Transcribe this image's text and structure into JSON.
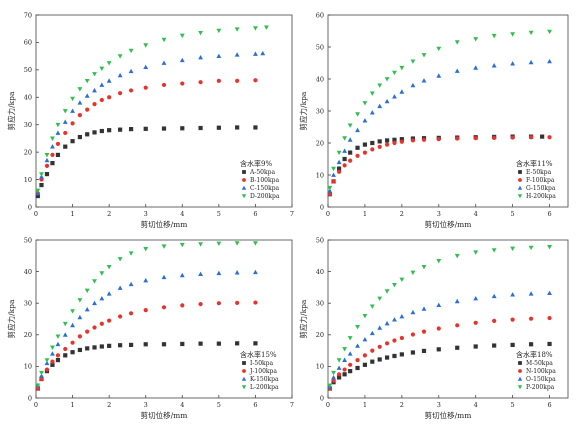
{
  "chart_data": [
    {
      "type": "scatter",
      "xlabel": "剪切位移/mm",
      "ylabel": "剪应力/kpa",
      "xlim": [
        0,
        7
      ],
      "ylim": [
        0,
        70
      ],
      "xticks": [
        0,
        1,
        2,
        3,
        4,
        5,
        6,
        7
      ],
      "yticks": [
        0,
        10,
        20,
        30,
        40,
        50,
        60,
        70
      ],
      "legend_title": "含水率9%",
      "legend_position": "bottom-right",
      "series": [
        {
          "name": "A-50kpa",
          "marker": "square",
          "color": "#333333",
          "x": [
            0.05,
            0.15,
            0.3,
            0.45,
            0.6,
            0.8,
            1.0,
            1.2,
            1.4,
            1.6,
            1.8,
            2.0,
            2.3,
            2.6,
            3.0,
            3.5,
            4.0,
            4.5,
            5.0,
            5.5,
            6.0
          ],
          "y": [
            4,
            8,
            12,
            16,
            19,
            22,
            24,
            25.5,
            26.5,
            27.2,
            27.7,
            28,
            28.2,
            28.4,
            28.5,
            28.6,
            28.7,
            28.8,
            28.9,
            29,
            29
          ]
        },
        {
          "name": "B-100kpa",
          "marker": "circle",
          "color": "#e8322c",
          "x": [
            0.05,
            0.15,
            0.3,
            0.45,
            0.6,
            0.8,
            1.0,
            1.2,
            1.4,
            1.6,
            1.8,
            2.0,
            2.3,
            2.6,
            3.0,
            3.5,
            4.0,
            4.5,
            5.0,
            5.5,
            6.0
          ],
          "y": [
            5,
            10,
            15,
            19,
            23,
            27,
            30.5,
            33.5,
            35.5,
            37.5,
            39,
            40,
            41.5,
            42.5,
            43.5,
            44.5,
            45,
            45.5,
            46,
            46,
            46.2
          ]
        },
        {
          "name": "C-150kpa",
          "marker": "triangle-up",
          "color": "#2a6fd6",
          "x": [
            0.05,
            0.15,
            0.3,
            0.45,
            0.6,
            0.8,
            1.0,
            1.2,
            1.4,
            1.6,
            1.8,
            2.0,
            2.3,
            2.6,
            3.0,
            3.5,
            4.0,
            4.5,
            5.0,
            5.5,
            6.0,
            6.2
          ],
          "y": [
            5,
            11,
            17,
            22,
            27,
            31,
            35,
            38,
            40.5,
            42.5,
            44.5,
            46,
            48,
            49.5,
            51,
            52.5,
            53.5,
            54.5,
            55,
            55.5,
            55.8,
            56
          ]
        },
        {
          "name": "D-200kpa",
          "marker": "triangle-down",
          "color": "#2fbf4e",
          "x": [
            0.05,
            0.15,
            0.3,
            0.45,
            0.6,
            0.8,
            1.0,
            1.2,
            1.4,
            1.6,
            1.8,
            2.0,
            2.3,
            2.6,
            3.0,
            3.5,
            4.0,
            4.5,
            5.0,
            5.5,
            6.0,
            6.3
          ],
          "y": [
            6,
            12,
            19,
            25,
            30,
            35,
            39.5,
            43,
            46,
            48.5,
            50.5,
            52.5,
            55,
            57,
            59,
            61,
            62.5,
            63.5,
            64.3,
            64.8,
            65.2,
            65.5
          ]
        }
      ]
    },
    {
      "type": "scatter",
      "xlabel": "剪切位移/mm",
      "ylabel": "剪应力/kpa",
      "xlim": [
        0,
        6.5
      ],
      "ylim": [
        0,
        60
      ],
      "xticks": [
        0,
        1,
        2,
        3,
        4,
        5,
        6
      ],
      "yticks": [
        0,
        10,
        20,
        30,
        40,
        50,
        60
      ],
      "legend_title": "含水率11%",
      "legend_position": "bottom-right",
      "series": [
        {
          "name": "E-50kpa",
          "marker": "square",
          "color": "#333333",
          "x": [
            0.05,
            0.15,
            0.3,
            0.45,
            0.6,
            0.8,
            1.0,
            1.2,
            1.4,
            1.6,
            1.8,
            2.0,
            2.3,
            2.6,
            3.0,
            3.5,
            4.0,
            4.5,
            5.0,
            5.5,
            5.8
          ],
          "y": [
            4,
            8,
            12,
            15,
            17,
            18.5,
            19.5,
            20,
            20.5,
            20.8,
            21,
            21.2,
            21.4,
            21.5,
            21.6,
            21.7,
            21.8,
            21.9,
            22,
            22,
            22
          ]
        },
        {
          "name": "F-100kpa",
          "marker": "circle",
          "color": "#e8322c",
          "x": [
            0.05,
            0.15,
            0.3,
            0.45,
            0.6,
            0.8,
            1.0,
            1.2,
            1.4,
            1.6,
            1.8,
            2.0,
            2.3,
            2.6,
            3.0,
            3.5,
            4.0,
            4.5,
            5.0,
            5.5,
            6.0
          ],
          "y": [
            4,
            8,
            11,
            13,
            14.5,
            16,
            17,
            18,
            18.8,
            19.5,
            20,
            20.4,
            20.8,
            21,
            21.2,
            21.4,
            21.5,
            21.6,
            21.7,
            21.8,
            21.8
          ]
        },
        {
          "name": "G-150kpa",
          "marker": "triangle-up",
          "color": "#2a6fd6",
          "x": [
            0.05,
            0.15,
            0.3,
            0.45,
            0.6,
            0.8,
            1.0,
            1.2,
            1.4,
            1.6,
            1.8,
            2.0,
            2.3,
            2.6,
            3.0,
            3.5,
            4.0,
            4.5,
            5.0,
            5.5,
            6.0
          ],
          "y": [
            5,
            10,
            14,
            17.5,
            21,
            24,
            27,
            29.5,
            31.5,
            33,
            34.5,
            36,
            38,
            39.5,
            41,
            42.5,
            43.5,
            44.2,
            44.8,
            45.2,
            45.5
          ]
        },
        {
          "name": "H-200kpa",
          "marker": "triangle-down",
          "color": "#2fbf4e",
          "x": [
            0.05,
            0.15,
            0.3,
            0.45,
            0.6,
            0.8,
            1.0,
            1.2,
            1.4,
            1.6,
            1.8,
            2.0,
            2.3,
            2.6,
            3.0,
            3.5,
            4.0,
            4.5,
            5.0,
            5.5,
            6.0
          ],
          "y": [
            6,
            12,
            17,
            21.5,
            25.5,
            29,
            32.5,
            35.5,
            38,
            40,
            42,
            43.5,
            45.5,
            47.5,
            49.5,
            51.5,
            52.5,
            53.5,
            54,
            54.5,
            54.8
          ]
        }
      ]
    },
    {
      "type": "scatter",
      "xlabel": "剪切位移/mm",
      "ylabel": "剪应力/kpa",
      "xlim": [
        0,
        7
      ],
      "ylim": [
        0,
        50
      ],
      "xticks": [
        0,
        1,
        2,
        3,
        4,
        5,
        6,
        7
      ],
      "yticks": [
        0,
        10,
        20,
        30,
        40,
        50
      ],
      "legend_title": "含水率15%",
      "legend_position": "bottom-right",
      "series": [
        {
          "name": "I-50kpa",
          "marker": "square",
          "color": "#333333",
          "x": [
            0.05,
            0.15,
            0.3,
            0.45,
            0.6,
            0.8,
            1.0,
            1.2,
            1.4,
            1.6,
            1.8,
            2.0,
            2.3,
            2.6,
            3.0,
            3.5,
            4.0,
            4.5,
            5.0,
            5.5,
            6.0
          ],
          "y": [
            3,
            6,
            8.5,
            10.5,
            12,
            13.5,
            14.5,
            15.2,
            15.7,
            16,
            16.3,
            16.5,
            16.7,
            16.8,
            17,
            17,
            17.1,
            17.2,
            17.2,
            17.3,
            17.3
          ]
        },
        {
          "name": "J-100kpa",
          "marker": "circle",
          "color": "#e8322c",
          "x": [
            0.05,
            0.15,
            0.3,
            0.45,
            0.6,
            0.8,
            1.0,
            1.2,
            1.4,
            1.6,
            1.8,
            2.0,
            2.3,
            2.6,
            3.0,
            3.5,
            4.0,
            4.5,
            5.0,
            5.5,
            6.0
          ],
          "y": [
            3,
            6,
            9,
            11.5,
            13.5,
            15.5,
            17.5,
            19.5,
            21,
            22.3,
            23.5,
            24.5,
            25.8,
            26.8,
            27.8,
            28.7,
            29.3,
            29.7,
            30,
            30.1,
            30.2
          ]
        },
        {
          "name": "K-150kpa",
          "marker": "triangle-up",
          "color": "#2a6fd6",
          "x": [
            0.05,
            0.15,
            0.3,
            0.45,
            0.6,
            0.8,
            1.0,
            1.2,
            1.4,
            1.6,
            1.8,
            2.0,
            2.3,
            2.6,
            3.0,
            3.5,
            4.0,
            4.5,
            5.0,
            5.5,
            6.0
          ],
          "y": [
            4,
            7,
            11,
            14,
            17,
            20,
            23,
            25.5,
            28,
            30,
            31.5,
            33,
            34.8,
            36,
            37.2,
            38.2,
            38.8,
            39.2,
            39.5,
            39.7,
            39.8
          ]
        },
        {
          "name": "L-200kpa",
          "marker": "triangle-down",
          "color": "#2fbf4e",
          "x": [
            0.05,
            0.15,
            0.3,
            0.45,
            0.6,
            0.8,
            1.0,
            1.2,
            1.4,
            1.6,
            1.8,
            2.0,
            2.3,
            2.6,
            3.0,
            3.5,
            4.0,
            4.5,
            5.0,
            5.5,
            6.0
          ],
          "y": [
            4,
            8,
            12,
            16,
            19.5,
            23.5,
            27.5,
            31,
            34,
            37,
            39.5,
            41.5,
            44,
            45.8,
            47.2,
            48,
            48.5,
            48.7,
            48.9,
            49,
            49
          ]
        }
      ]
    },
    {
      "type": "scatter",
      "xlabel": "剪切位移/mm",
      "ylabel": "剪应力/kpa",
      "xlim": [
        0,
        6.5
      ],
      "ylim": [
        0,
        50
      ],
      "xticks": [
        0,
        1,
        2,
        3,
        4,
        5,
        6
      ],
      "yticks": [
        0,
        10,
        20,
        30,
        40,
        50
      ],
      "legend_title": "含水率18%",
      "legend_position": "bottom-right",
      "series": [
        {
          "name": "M-50kpa",
          "marker": "square",
          "color": "#333333",
          "x": [
            0.05,
            0.15,
            0.3,
            0.45,
            0.6,
            0.8,
            1.0,
            1.2,
            1.4,
            1.6,
            1.8,
            2.0,
            2.3,
            2.6,
            3.0,
            3.5,
            4.0,
            4.5,
            5.0,
            5.5,
            6.0
          ],
          "y": [
            3,
            5,
            6.5,
            7.5,
            8.5,
            9.5,
            10.5,
            11.5,
            12.2,
            12.8,
            13.3,
            13.8,
            14.4,
            14.9,
            15.4,
            15.9,
            16.3,
            16.6,
            16.8,
            17,
            17.1
          ]
        },
        {
          "name": "N-100kpa",
          "marker": "circle",
          "color": "#e8322c",
          "x": [
            0.05,
            0.15,
            0.3,
            0.45,
            0.6,
            0.8,
            1.0,
            1.2,
            1.4,
            1.6,
            1.8,
            2.0,
            2.3,
            2.6,
            3.0,
            3.5,
            4.0,
            4.5,
            5.0,
            5.5,
            6.0
          ],
          "y": [
            3,
            5.5,
            7.5,
            9,
            10.5,
            12,
            13.5,
            15,
            16.2,
            17.3,
            18.2,
            19,
            20.1,
            21,
            22,
            23,
            23.8,
            24.4,
            24.8,
            25.1,
            25.3
          ]
        },
        {
          "name": "O-150kpa",
          "marker": "triangle-up",
          "color": "#2a6fd6",
          "x": [
            0.05,
            0.15,
            0.3,
            0.45,
            0.6,
            0.8,
            1.0,
            1.2,
            1.4,
            1.6,
            1.8,
            2.0,
            2.3,
            2.6,
            3.0,
            3.5,
            4.0,
            4.5,
            5.0,
            5.5,
            6.0
          ],
          "y": [
            3.5,
            6.5,
            9.5,
            12,
            14,
            16.5,
            18.5,
            20.5,
            22.2,
            23.6,
            24.8,
            25.8,
            27.1,
            28.2,
            29.4,
            30.6,
            31.5,
            32.2,
            32.7,
            33,
            33.2
          ]
        },
        {
          "name": "P-200kpa",
          "marker": "triangle-down",
          "color": "#2fbf4e",
          "x": [
            0.05,
            0.15,
            0.3,
            0.45,
            0.6,
            0.8,
            1.0,
            1.2,
            1.4,
            1.6,
            1.8,
            2.0,
            2.3,
            2.6,
            3.0,
            3.5,
            4.0,
            4.5,
            5.0,
            5.5,
            6.0
          ],
          "y": [
            4,
            8,
            12,
            15.5,
            19,
            22.5,
            26,
            29,
            31.5,
            33.8,
            35.8,
            37.5,
            39.7,
            41.5,
            43.4,
            45,
            46.1,
            46.8,
            47.3,
            47.6,
            47.8
          ]
        }
      ]
    }
  ]
}
